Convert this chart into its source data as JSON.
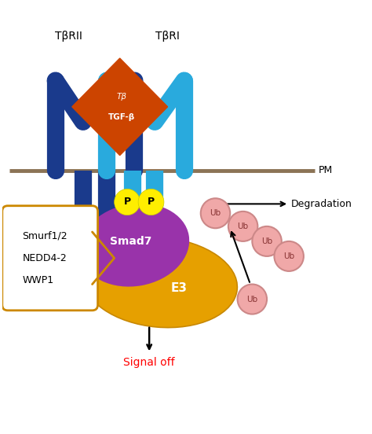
{
  "fig_width": 4.74,
  "fig_height": 5.52,
  "dpi": 100,
  "bg_color": "#ffffff",
  "dark_blue": "#1a3a8c",
  "cyan_blue": "#29aadd",
  "orange_red": "#cc4400",
  "yellow": "#ffee00",
  "purple": "#9933aa",
  "gold_orange": "#e6a000",
  "pink": "#f0a8a8",
  "pink_dark": "#cc8888",
  "brown": "#8B7355",
  "box_color": "#cc8800",
  "label_TbRII": "TβRII",
  "label_TbRI": "TβRI",
  "label_TGF_top": "Tβ",
  "label_TGF": "TGF-β",
  "label_PM": "PM",
  "label_Degradation": "Degradation",
  "label_Smad7": "Smad7",
  "label_E3": "E3",
  "label_Ub": "Ub",
  "label_P": "P",
  "label_Signal": "Signal off",
  "label_Smurf": "Smurf1/2",
  "label_NEDD": "NEDD4-2",
  "label_WWP": "WWP1"
}
